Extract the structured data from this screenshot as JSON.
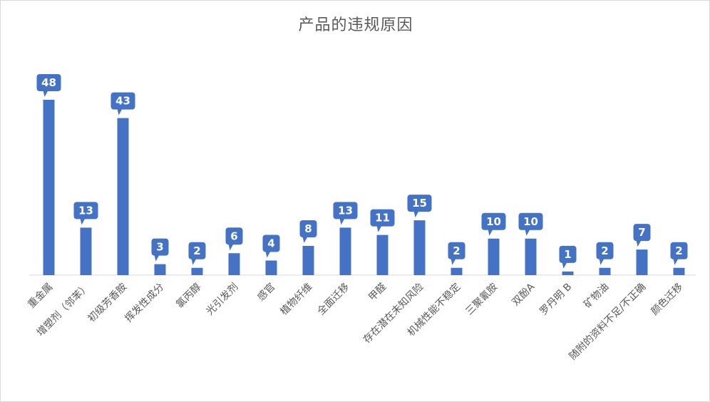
{
  "chart_data": {
    "type": "bar",
    "title": "产品的违规原因",
    "xlabel": "",
    "ylabel": "",
    "ylim": [
      0,
      50
    ],
    "grid": false,
    "legend": "none",
    "bar_color": "#4472C4",
    "categories": [
      "重金属",
      "增塑剂（邻苯）",
      "初级芳香胺",
      "挥发性成分",
      "氯丙醇",
      "光引发剂",
      "感官",
      "植物纤维",
      "全面迁移",
      "甲醛",
      "存在潜在未知风险",
      "机械性能不稳定",
      "三聚氰胺",
      "双酚A",
      "罗丹明 B",
      "矿物油",
      "随附的资料不足/不正确",
      "颜色迁移"
    ],
    "values": [
      48,
      13,
      43,
      3,
      2,
      6,
      4,
      8,
      13,
      11,
      15,
      2,
      10,
      10,
      1,
      2,
      7,
      2
    ]
  }
}
